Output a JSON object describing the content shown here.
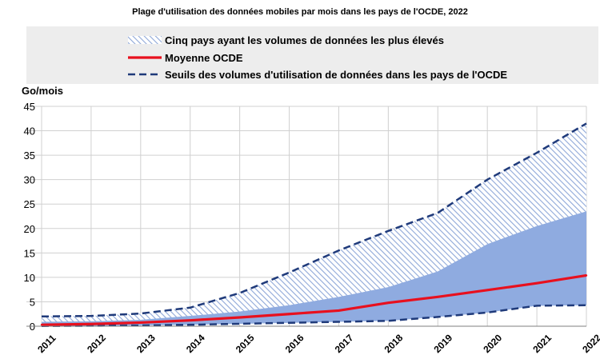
{
  "chart_data": {
    "type": "area",
    "title": "Plage d'utilisation des données mobiles par mois dans les pays de l'OCDE, 2022",
    "ylabel": "Go/mois",
    "ylim": [
      0,
      45
    ],
    "yticks": [
      0,
      5,
      10,
      15,
      20,
      25,
      30,
      35,
      40,
      45
    ],
    "x": [
      "2011",
      "2012",
      "2013",
      "2014",
      "2015",
      "2016",
      "2017",
      "2018",
      "2019",
      "2020",
      "2021",
      "2022"
    ],
    "legend_position": "top",
    "grid": true,
    "series": [
      {
        "name": "Cinq pays ayant les volumes de données les plus élevés",
        "style": "hatched-area",
        "upper": [
          2.0,
          2.1,
          2.6,
          3.8,
          6.8,
          11.0,
          15.5,
          19.5,
          23.2,
          30.0,
          35.5,
          41.5
        ],
        "lower": [
          0.9,
          1.0,
          1.3,
          2.1,
          3.0,
          4.3,
          6.0,
          8.0,
          11.2,
          16.8,
          20.5,
          23.5
        ]
      },
      {
        "name": "Moyenne OCDE",
        "style": "line",
        "values": [
          0.3,
          0.45,
          0.75,
          1.2,
          1.8,
          2.5,
          3.2,
          4.8,
          6.0,
          7.4,
          8.8,
          10.4
        ]
      },
      {
        "name": "Seuils des volumes d'utilisation de données dans les pays de l'OCDE",
        "style": "dashed-band",
        "upper": [
          2.0,
          2.1,
          2.6,
          3.8,
          6.8,
          11.0,
          15.5,
          19.5,
          23.2,
          30.0,
          35.5,
          41.5
        ],
        "lower": [
          0.05,
          0.1,
          0.15,
          0.3,
          0.5,
          0.7,
          0.9,
          1.1,
          1.9,
          2.8,
          4.2,
          4.3
        ]
      }
    ]
  },
  "colors": {
    "hatch": "#8fa8d8",
    "fill_light": "#c9d5ee",
    "fill_dark": "#8fabe0",
    "average_line": "#e8101e",
    "dashed_line": "#1f3a7a",
    "legend_bg": "#ededed",
    "grid": "#d0d0d0"
  }
}
